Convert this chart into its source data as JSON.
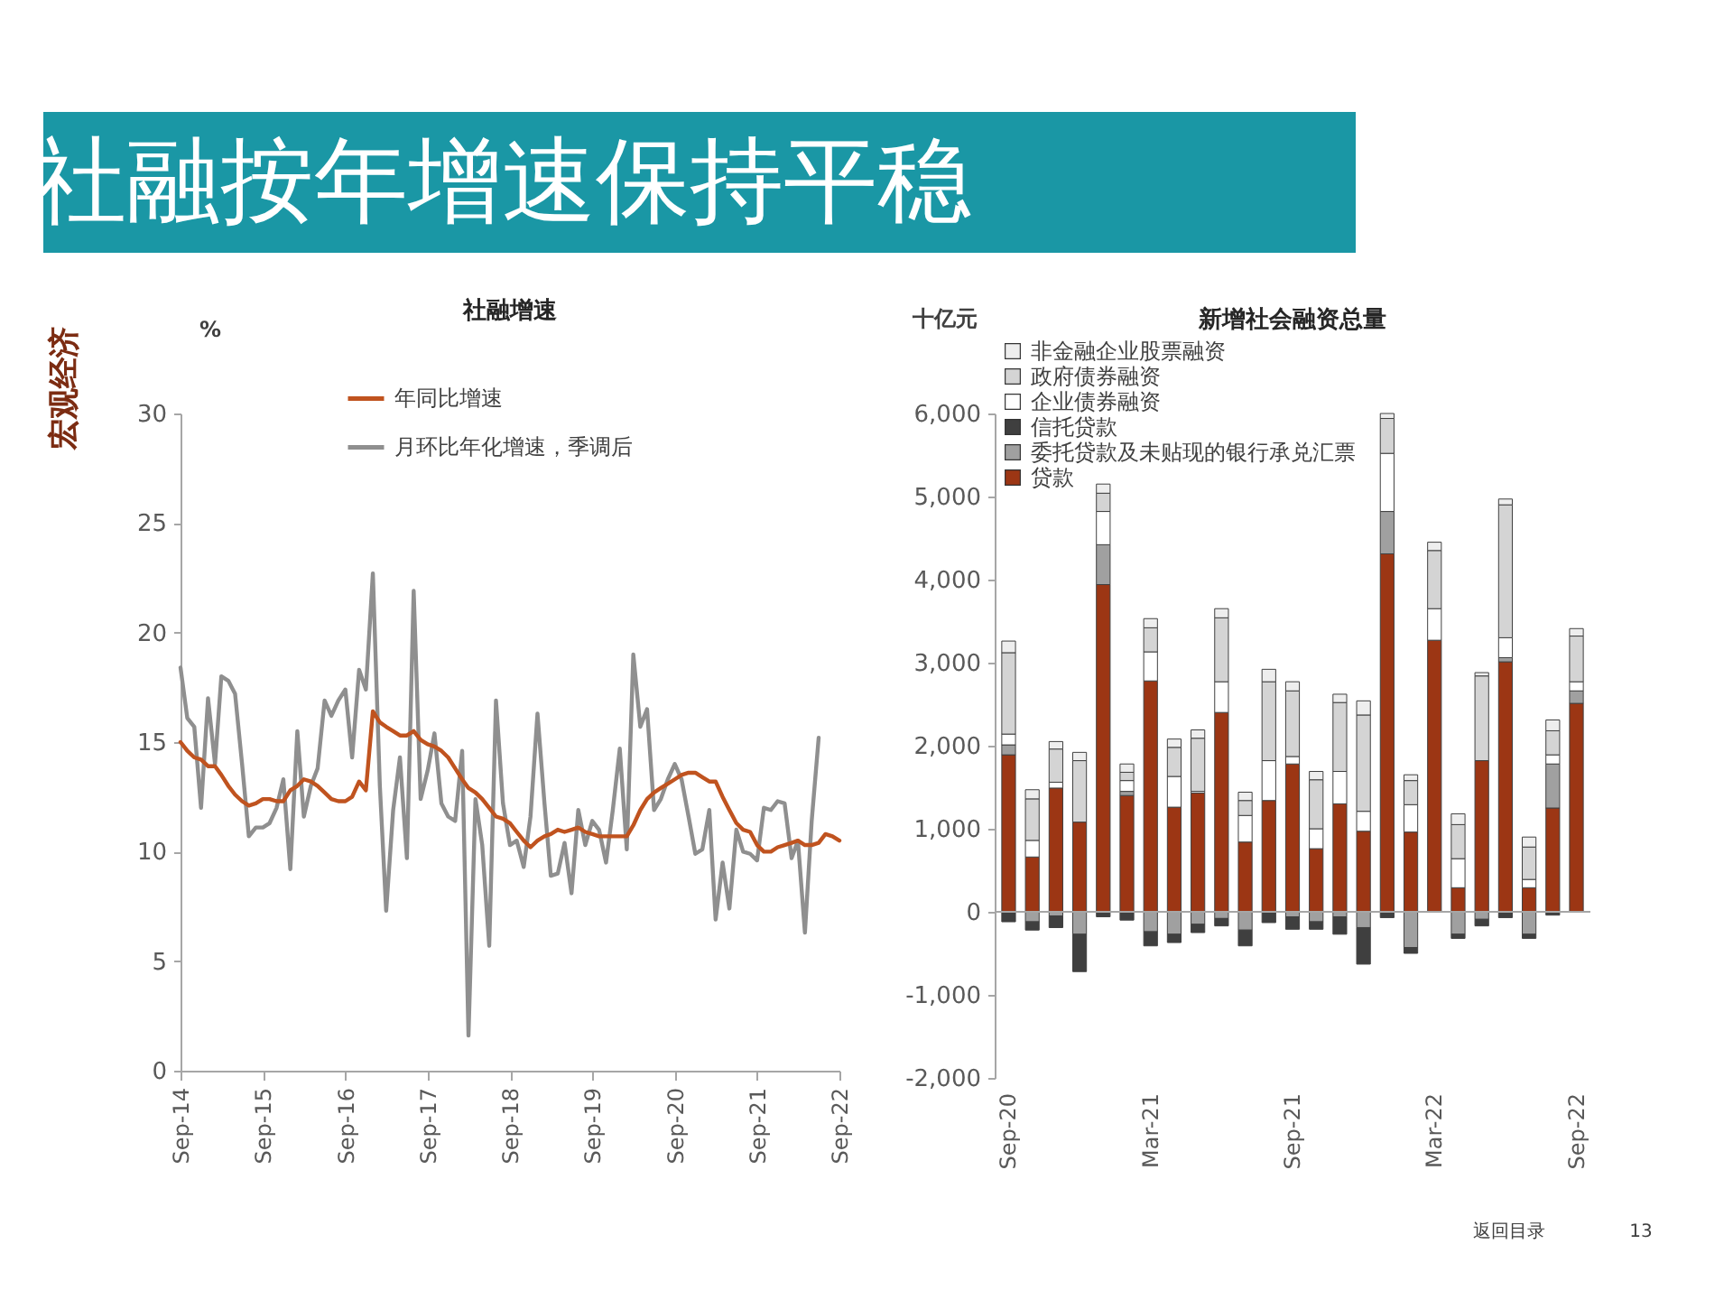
{
  "chart_data": [
    {
      "type": "other",
      "title": "社融按年增速保持平稳",
      "annotations": [
        "宏观经济",
        "返回目录",
        "13"
      ]
    },
    {
      "type": "line",
      "title": "社融增速",
      "ylabel": "%",
      "legend": "top",
      "x": [
        "2014-09",
        "2014-10",
        "2014-11",
        "2014-12",
        "2015-01",
        "2015-02",
        "2015-03",
        "2015-04",
        "2015-05",
        "2015-06",
        "2015-07",
        "2015-08",
        "2015-09",
        "2015-10",
        "2015-11",
        "2015-12",
        "2016-01",
        "2016-02",
        "2016-03",
        "2016-04",
        "2016-05",
        "2016-06",
        "2016-07",
        "2016-08",
        "2016-09",
        "2016-10",
        "2016-11",
        "2016-12",
        "2017-01",
        "2017-02",
        "2017-03",
        "2017-04",
        "2017-05",
        "2017-06",
        "2017-07",
        "2017-08",
        "2017-09",
        "2017-10",
        "2017-11",
        "2017-12",
        "2018-01",
        "2018-02",
        "2018-03",
        "2018-04",
        "2018-05",
        "2018-06",
        "2018-07",
        "2018-08",
        "2018-09",
        "2018-10",
        "2018-11",
        "2018-12",
        "2019-01",
        "2019-02",
        "2019-03",
        "2019-04",
        "2019-05",
        "2019-06",
        "2019-07",
        "2019-08",
        "2019-09",
        "2019-10",
        "2019-11",
        "2019-12",
        "2020-01",
        "2020-02",
        "2020-03",
        "2020-04",
        "2020-05",
        "2020-06",
        "2020-07",
        "2020-08",
        "2020-09",
        "2020-10",
        "2020-11",
        "2020-12",
        "2021-01",
        "2021-02",
        "2021-03",
        "2021-04",
        "2021-05",
        "2021-06",
        "2021-07",
        "2021-08",
        "2021-09",
        "2021-10",
        "2021-11",
        "2021-12",
        "2022-01",
        "2022-02",
        "2022-03",
        "2022-04",
        "2022-05",
        "2022-06",
        "2022-07",
        "2022-08",
        "2022-09"
      ],
      "xlim": [
        "2014-09",
        "2022-09"
      ],
      "xticks": [
        {
          "value": "2014-09",
          "label": "Sep-14"
        },
        {
          "value": "2015-09",
          "label": "Sep-15"
        },
        {
          "value": "2016-09",
          "label": "Sep-16"
        },
        {
          "value": "2017-09",
          "label": "Sep-17"
        },
        {
          "value": "2018-09",
          "label": "Sep-18"
        },
        {
          "value": "2019-09",
          "label": "Sep-19"
        },
        {
          "value": "2020-09",
          "label": "Sep-20"
        },
        {
          "value": "2021-09",
          "label": "Sep-21"
        },
        {
          "value": "2022-09",
          "label": "Sep-22"
        }
      ],
      "ylim": [
        0,
        30
      ],
      "yticks": [
        0,
        5,
        10,
        15,
        20,
        25,
        30
      ],
      "series": [
        {
          "name": "年同比增速",
          "color": "#c0531f",
          "values": [
            15.0,
            14.6,
            14.3,
            14.2,
            13.9,
            13.9,
            13.5,
            13.0,
            12.6,
            12.3,
            12.1,
            12.2,
            12.4,
            12.4,
            12.3,
            12.3,
            12.8,
            13.0,
            13.3,
            13.2,
            13.0,
            12.7,
            12.4,
            12.3,
            12.3,
            12.5,
            13.2,
            12.8,
            16.4,
            15.9,
            15.7,
            15.5,
            15.3,
            15.3,
            15.5,
            15.1,
            14.9,
            14.8,
            14.6,
            14.3,
            13.8,
            13.3,
            12.9,
            12.7,
            12.4,
            12.0,
            11.6,
            11.5,
            11.3,
            10.9,
            10.5,
            10.2,
            10.5,
            10.7,
            10.8,
            11.0,
            10.9,
            11.0,
            11.1,
            10.9,
            10.8,
            10.7,
            10.7,
            10.7,
            10.7,
            10.7,
            11.2,
            11.9,
            12.4,
            12.7,
            12.9,
            13.1,
            13.3,
            13.5,
            13.6,
            13.6,
            13.4,
            13.2,
            13.2,
            12.5,
            11.9,
            11.3,
            11.0,
            10.9,
            10.3,
            10.0,
            10.0,
            10.2,
            10.3,
            10.4,
            10.5,
            10.3,
            10.3,
            10.4,
            10.8,
            10.7,
            10.5
          ]
        },
        {
          "name": "月环比年化增速，季调后",
          "color": "#8f8f8f",
          "values": [
            18.4,
            16.1,
            15.7,
            12.0,
            17.0,
            14.0,
            18.0,
            17.8,
            17.2,
            14.0,
            10.7,
            11.1,
            11.1,
            11.3,
            12.0,
            13.3,
            9.2,
            15.5,
            11.6,
            13.0,
            13.8,
            16.9,
            16.2,
            16.9,
            17.4,
            14.3,
            18.3,
            17.4,
            22.7,
            13.0,
            7.3,
            11.9,
            14.3,
            9.7,
            21.9,
            12.4,
            13.7,
            15.4,
            12.2,
            11.6,
            11.4,
            14.6,
            1.6,
            12.4,
            10.3,
            5.7,
            16.9,
            12.2,
            10.3,
            10.5,
            9.3,
            11.6,
            16.3,
            12.2,
            8.9,
            9.0,
            10.4,
            8.1,
            11.9,
            10.3,
            11.4,
            11.0,
            9.5,
            11.9,
            14.7,
            10.1,
            19.0,
            15.7,
            16.5,
            11.9,
            12.4,
            13.3,
            14.0,
            13.3,
            11.6,
            9.9,
            10.1,
            11.9,
            6.9,
            9.5,
            7.4,
            11.0,
            10.0,
            9.9,
            9.6,
            12.0,
            11.9,
            12.3,
            12.2,
            9.7,
            10.5,
            6.3,
            11.4,
            15.2,
            null,
            null,
            null
          ]
        }
      ]
    },
    {
      "type": "bar",
      "stacked": true,
      "title": "新增社会融资总量",
      "ylabel": "十亿元",
      "legend": "top left",
      "categories": [
        "Sep-20",
        null,
        null,
        null,
        null,
        null,
        "Mar-21",
        null,
        null,
        null,
        null,
        null,
        "Sep-21",
        null,
        null,
        null,
        null,
        null,
        "Mar-22",
        null,
        null,
        null,
        null,
        null,
        "Sep-22"
      ],
      "ylim": [
        -2000,
        6000
      ],
      "yticks": [
        {
          "value": -2000,
          "label": "-2,000"
        },
        {
          "value": -1000,
          "label": "-1,000"
        },
        0,
        {
          "value": 1000,
          "label": "1,000"
        },
        {
          "value": 2000,
          "label": "2,000"
        },
        {
          "value": 3000,
          "label": "3,000"
        },
        {
          "value": 4000,
          "label": "4,000"
        },
        {
          "value": 5000,
          "label": "5,000"
        },
        {
          "value": 6000,
          "label": "6,000"
        }
      ],
      "ref_lines": [
        {
          "axis": "y",
          "value": 0,
          "color": "#a6a6a6"
        }
      ],
      "series": [
        {
          "name": "贷款",
          "color": "#9c3614",
          "values": [
            1890,
            660,
            1490,
            1080,
            3940,
            1400,
            2780,
            1260,
            1430,
            2400,
            840,
            1340,
            1780,
            760,
            1300,
            970,
            4310,
            960,
            3270,
            290,
            1820,
            3010,
            290,
            1250,
            2510
          ]
        },
        {
          "name": "委托贷款及未贴现的银行承兑汇票",
          "color": "#a0a0a0",
          "values": [
            120,
            -120,
            -50,
            -270,
            480,
            50,
            -240,
            -270,
            -150,
            -80,
            -220,
            null,
            -60,
            -120,
            -60,
            -190,
            510,
            -430,
            null,
            -270,
            -90,
            50,
            -270,
            530,
            150
          ]
        },
        {
          "name": "信托贷款",
          "color": "#3f3f3f",
          "values": [
            -120,
            -100,
            -140,
            -450,
            -60,
            -100,
            -170,
            -100,
            -100,
            -90,
            -190,
            -130,
            -150,
            -90,
            -210,
            -440,
            -70,
            -70,
            null,
            -50,
            -80,
            -70,
            -50,
            -40,
            null
          ]
        },
        {
          "name": "企业债券融资",
          "color": "#ffffff",
          "values": [
            130,
            200,
            70,
            null,
            400,
            130,
            350,
            370,
            20,
            370,
            320,
            480,
            90,
            240,
            390,
            240,
            700,
            330,
            380,
            350,
            null,
            240,
            100,
            110,
            110
          ]
        },
        {
          "name": "政府债券融资",
          "color": "#d4d4d4",
          "values": [
            980,
            500,
            400,
            740,
            220,
            100,
            290,
            350,
            640,
            770,
            180,
            950,
            790,
            590,
            830,
            1160,
            420,
            290,
            700,
            410,
            1020,
            1600,
            390,
            290,
            550
          ]
        },
        {
          "name": "非金融企业股票融资",
          "color": "#eeeeee",
          "values": [
            140,
            110,
            90,
            100,
            110,
            100,
            110,
            100,
            100,
            110,
            100,
            150,
            110,
            100,
            100,
            170,
            60,
            70,
            100,
            130,
            40,
            70,
            120,
            130,
            90
          ]
        }
      ]
    }
  ]
}
